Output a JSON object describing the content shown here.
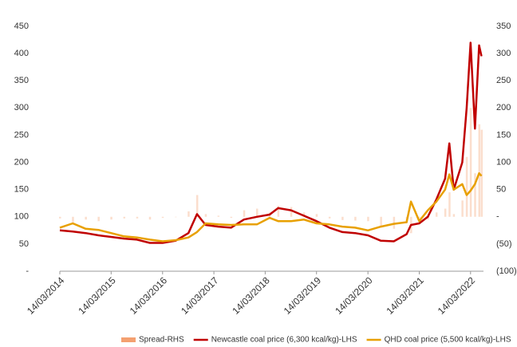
{
  "chart_data": {
    "type": "line",
    "x": [
      "14/03/2014",
      "14/06/2014",
      "14/09/2014",
      "14/12/2014",
      "14/03/2015",
      "14/06/2015",
      "14/09/2015",
      "14/12/2015",
      "14/03/2016",
      "14/06/2016",
      "14/09/2016",
      "14/11/2016",
      "14/01/2017",
      "14/04/2017",
      "14/07/2017",
      "14/10/2017",
      "14/01/2018",
      "14/04/2018",
      "14/06/2018",
      "14/09/2018",
      "14/12/2018",
      "14/03/2019",
      "14/06/2019",
      "14/09/2019",
      "14/12/2019",
      "14/03/2020",
      "14/06/2020",
      "14/09/2020",
      "14/12/2020",
      "14/01/2021",
      "14/03/2021",
      "14/05/2021",
      "14/07/2021",
      "14/09/2021",
      "14/10/2021",
      "14/11/2021",
      "14/01/2022",
      "14/02/2022",
      "14/03/2022",
      "14/04/2022",
      "14/05/2022",
      "31/05/2022"
    ],
    "series": [
      {
        "name": "Spread-RHS",
        "color": "#f4a070",
        "axis": "y2",
        "kind": "bar",
        "values": [
          -3,
          -10,
          -5,
          -8,
          -5,
          -3,
          -3,
          -5,
          -2,
          0,
          10,
          40,
          5,
          2,
          -2,
          12,
          15,
          8,
          20,
          18,
          8,
          5,
          -3,
          -6,
          -7,
          -8,
          -18,
          -22,
          -12,
          -30,
          -2,
          -5,
          8,
          15,
          45,
          5,
          30,
          110,
          200,
          80,
          170,
          160
        ]
      },
      {
        "name": "Newcastle coal price (6,300 kcal/kg)-LHS",
        "color": "#c00000",
        "values": [
          75,
          73,
          70,
          66,
          63,
          60,
          58,
          52,
          52,
          56,
          70,
          105,
          85,
          82,
          80,
          95,
          100,
          104,
          116,
          112,
          102,
          92,
          80,
          72,
          70,
          66,
          56,
          55,
          68,
          85,
          88,
          100,
          132,
          170,
          235,
          150,
          200,
          300,
          420,
          262,
          415,
          395
        ]
      },
      {
        "name": "QHD coal price (5,500 kcal/kg)-LHS",
        "color": "#e8a000",
        "values": [
          80,
          88,
          78,
          76,
          70,
          64,
          62,
          58,
          55,
          57,
          62,
          72,
          88,
          86,
          85,
          86,
          86,
          98,
          92,
          92,
          95,
          88,
          86,
          82,
          80,
          75,
          82,
          87,
          90,
          128,
          92,
          112,
          128,
          150,
          178,
          150,
          160,
          140,
          148,
          160,
          180,
          175
        ]
      }
    ],
    "xlim": [
      "14/03/2014",
      "14/06/2022"
    ],
    "xticks": [
      "14/03/2014",
      "14/03/2015",
      "14/03/2016",
      "14/03/2017",
      "14/03/2018",
      "14/03/2019",
      "14/03/2020",
      "14/03/2021",
      "14/03/2022"
    ],
    "ylim": [
      0,
      450
    ],
    "yticks": [
      {
        "value": 0,
        "label": "-"
      },
      50,
      100,
      150,
      200,
      250,
      300,
      350,
      400,
      450
    ],
    "y2lim": [
      -100,
      350
    ],
    "y2ticks": [
      {
        "value": -100,
        "label": "(100)"
      },
      {
        "value": -50,
        "label": "(50)"
      },
      {
        "value": 0,
        "label": "-"
      },
      50,
      100,
      150,
      200,
      250,
      300,
      350
    ],
    "legend": "bottom"
  }
}
